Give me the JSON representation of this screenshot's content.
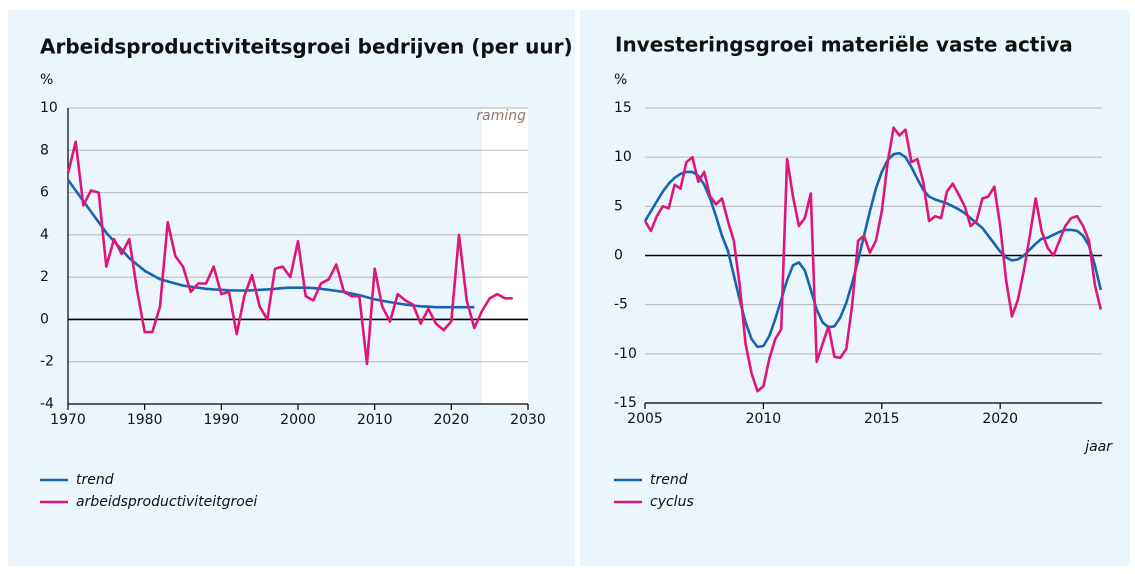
{
  "chart_data": [
    {
      "type": "line",
      "title": "Arbeidsproductiviteitsgroei bedrijven (per uur)",
      "y_label": "%",
      "annotation": "raming",
      "forecast_start": 2024,
      "x": [
        1970,
        1971,
        1972,
        1973,
        1974,
        1975,
        1976,
        1977,
        1978,
        1979,
        1980,
        1981,
        1982,
        1983,
        1984,
        1985,
        1986,
        1987,
        1988,
        1989,
        1990,
        1991,
        1992,
        1993,
        1994,
        1995,
        1996,
        1997,
        1998,
        1999,
        2000,
        2001,
        2002,
        2003,
        2004,
        2005,
        2006,
        2007,
        2008,
        2009,
        2010,
        2011,
        2012,
        2013,
        2014,
        2015,
        2016,
        2017,
        2018,
        2019,
        2020,
        2021,
        2022,
        2023,
        2024,
        2025,
        2026,
        2027,
        2028
      ],
      "series": [
        {
          "name": "trend",
          "color": "#1565b0",
          "values": [
            6.6,
            6.1,
            5.6,
            5.1,
            4.6,
            4.1,
            3.7,
            3.3,
            2.9,
            2.6,
            2.3,
            2.1,
            1.9,
            1.8,
            1.7,
            1.6,
            1.55,
            1.5,
            1.45,
            1.42,
            1.4,
            1.38,
            1.37,
            1.37,
            1.38,
            1.4,
            1.42,
            1.45,
            1.48,
            1.5,
            1.5,
            1.5,
            1.48,
            1.45,
            1.4,
            1.35,
            1.3,
            1.22,
            1.15,
            1.05,
            0.95,
            0.88,
            0.82,
            0.76,
            0.7,
            0.66,
            0.62,
            0.6,
            0.58,
            0.58,
            0.58,
            0.58,
            0.58,
            0.58,
            null,
            null,
            null,
            null,
            null
          ]
        },
        {
          "name": "arbeidsproductiviteitgroei",
          "color": "#e0157a",
          "values": [
            6.9,
            8.4,
            5.4,
            6.1,
            6.0,
            2.5,
            3.8,
            3.1,
            3.8,
            1.4,
            -0.6,
            -0.6,
            0.6,
            4.6,
            3.0,
            2.5,
            1.3,
            1.7,
            1.7,
            2.5,
            1.2,
            1.3,
            -0.7,
            1.1,
            2.1,
            0.6,
            0.0,
            2.4,
            2.5,
            2.0,
            3.7,
            1.1,
            0.9,
            1.7,
            1.9,
            2.6,
            1.3,
            1.1,
            1.1,
            -2.1,
            2.4,
            0.6,
            -0.1,
            1.2,
            0.9,
            0.7,
            -0.2,
            0.5,
            -0.2,
            -0.5,
            -0.1,
            4.0,
            0.9,
            -0.4,
            0.4,
            1.0,
            1.2,
            1.0,
            1.0
          ]
        }
      ],
      "xlim": [
        1970,
        2030
      ],
      "xticks": [
        1970,
        1980,
        1990,
        2000,
        2010,
        2020,
        2030
      ],
      "ylim": [
        -4,
        10
      ],
      "yticks": [
        -4,
        -2,
        0,
        2,
        4,
        6,
        8,
        10
      ],
      "grid": true
    },
    {
      "type": "line",
      "title": "Investeringsgroei materiële vaste activa",
      "y_label": "%",
      "x_label": "jaar",
      "x": [
        2005,
        2005.25,
        2005.5,
        2005.75,
        2006,
        2006.25,
        2006.5,
        2006.75,
        2007,
        2007.25,
        2007.5,
        2007.75,
        2008,
        2008.25,
        2008.5,
        2008.75,
        2009,
        2009.25,
        2009.5,
        2009.75,
        2010,
        2010.25,
        2010.5,
        2010.75,
        2011,
        2011.25,
        2011.5,
        2011.75,
        2012,
        2012.25,
        2012.5,
        2012.75,
        2013,
        2013.25,
        2013.5,
        2013.75,
        2014,
        2014.25,
        2014.5,
        2014.75,
        2015,
        2015.25,
        2015.5,
        2015.75,
        2016,
        2016.25,
        2016.5,
        2016.75,
        2017,
        2017.25,
        2017.5,
        2017.75,
        2018,
        2018.25,
        2018.5,
        2018.75,
        2019,
        2019.25,
        2019.5,
        2019.75,
        2020,
        2020.25,
        2020.5,
        2020.75,
        2021,
        2021.25,
        2021.5,
        2021.75,
        2022,
        2022.25,
        2022.5,
        2022.75,
        2023,
        2023.25,
        2023.5,
        2023.75,
        2024,
        2024.25
      ],
      "series": [
        {
          "name": "trend",
          "color": "#1565b0",
          "values": [
            3.5,
            4.5,
            5.5,
            6.5,
            7.3,
            7.9,
            8.3,
            8.5,
            8.5,
            8.1,
            7.2,
            5.8,
            4.0,
            2.0,
            0.5,
            -2.0,
            -4.5,
            -6.8,
            -8.5,
            -9.3,
            -9.2,
            -8.2,
            -6.5,
            -4.5,
            -2.5,
            -1.0,
            -0.7,
            -1.5,
            -3.5,
            -5.5,
            -6.8,
            -7.3,
            -7.2,
            -6.3,
            -4.8,
            -2.8,
            -0.5,
            2.0,
            4.5,
            6.8,
            8.5,
            9.7,
            10.3,
            10.4,
            10.0,
            9.0,
            7.8,
            6.7,
            6.0,
            5.7,
            5.5,
            5.3,
            5.0,
            4.7,
            4.3,
            3.8,
            3.3,
            2.8,
            2.0,
            1.2,
            0.4,
            -0.2,
            -0.5,
            -0.4,
            0.0,
            0.6,
            1.2,
            1.7,
            1.8,
            2.1,
            2.4,
            2.6,
            2.6,
            2.5,
            2.0,
            1.0,
            -1.0,
            -3.5
          ]
        },
        {
          "name": "cyclus",
          "color": "#e0157a",
          "values": [
            3.5,
            2.5,
            4.0,
            5.0,
            4.8,
            7.2,
            6.8,
            9.5,
            10.0,
            7.5,
            8.5,
            6.0,
            5.2,
            5.8,
            3.5,
            1.5,
            -3.0,
            -9.0,
            -12.0,
            -13.8,
            -13.3,
            -10.5,
            -8.5,
            -7.5,
            9.8,
            6.0,
            3.0,
            3.8,
            6.3,
            -10.8,
            -9.0,
            -7.2,
            -10.3,
            -10.4,
            -9.5,
            -5.0,
            1.5,
            2.0,
            0.3,
            1.5,
            4.5,
            9.5,
            13.0,
            12.2,
            12.8,
            9.5,
            9.8,
            7.5,
            3.5,
            4.0,
            3.8,
            6.5,
            7.3,
            6.2,
            5.0,
            3.0,
            3.5,
            5.8,
            6.0,
            7.0,
            3.0,
            -2.5,
            -6.2,
            -4.5,
            -1.5,
            2.0,
            5.8,
            2.5,
            0.8,
            0.0,
            1.5,
            3.0,
            3.8,
            4.0,
            3.0,
            1.5,
            -3.0,
            -5.5
          ]
        }
      ],
      "xlim": [
        2005,
        2024.3
      ],
      "xticks": [
        2005,
        2010,
        2015,
        2020
      ],
      "ylim": [
        -15,
        15
      ],
      "yticks": [
        -15,
        -10,
        -5,
        0,
        5,
        10,
        15
      ],
      "grid": true
    }
  ]
}
